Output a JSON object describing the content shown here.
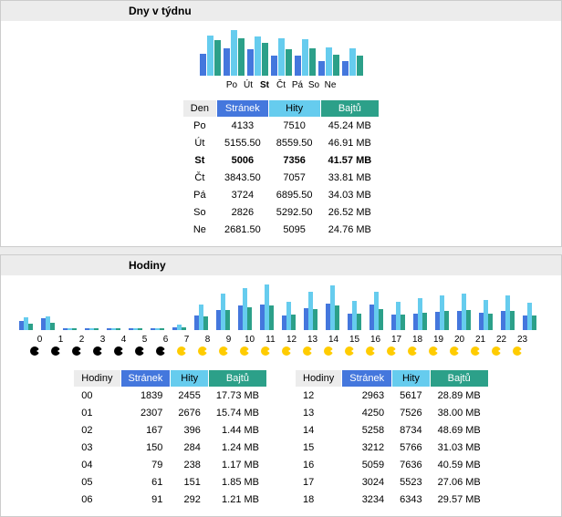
{
  "colors": {
    "bar_blue": "#4477dd",
    "bar_cyan": "#66ccee",
    "bar_teal": "#2ca089",
    "header_gray": "#ececec"
  },
  "days_section": {
    "title": "Dny v týdnu",
    "chart": {
      "type": "bar",
      "max": 8600,
      "bar_colors": [
        "#4477dd",
        "#66ccee",
        "#2ca089"
      ],
      "series": [
        {
          "label": "Po",
          "pages": 4133,
          "hits": 7510,
          "bytes": 45.24
        },
        {
          "label": "Út",
          "pages": 5155.5,
          "hits": 8559.5,
          "bytes": 46.91
        },
        {
          "label": "St",
          "pages": 5006,
          "hits": 7356,
          "bytes": 41.57,
          "bold": true
        },
        {
          "label": "Čt",
          "pages": 3843.5,
          "hits": 7057,
          "bytes": 33.81
        },
        {
          "label": "Pá",
          "pages": 3724,
          "hits": 6895.5,
          "bytes": 34.03
        },
        {
          "label": "So",
          "pages": 2826,
          "hits": 5292.5,
          "bytes": 26.52
        },
        {
          "label": "Ne",
          "pages": 2681.5,
          "hits": 5095,
          "bytes": 24.76
        }
      ]
    },
    "headers": {
      "den": "Den",
      "stranek": "Stránek",
      "hity": "Hity",
      "bajtu": "Bajtů"
    },
    "rows": [
      {
        "den": "Po",
        "stranek": "4133",
        "hity": "7510",
        "bajtu": "45.24 MB"
      },
      {
        "den": "Út",
        "stranek": "5155.50",
        "hity": "8559.50",
        "bajtu": "46.91 MB"
      },
      {
        "den": "St",
        "stranek": "5006",
        "hity": "7356",
        "bajtu": "41.57 MB",
        "bold": true
      },
      {
        "den": "Čt",
        "stranek": "3843.50",
        "hity": "7057",
        "bajtu": "33.81 MB"
      },
      {
        "den": "Pá",
        "stranek": "3724",
        "hity": "6895.50",
        "bajtu": "34.03 MB"
      },
      {
        "den": "So",
        "stranek": "2826",
        "hity": "5292.50",
        "bajtu": "26.52 MB"
      },
      {
        "den": "Ne",
        "stranek": "2681.50",
        "hity": "5095",
        "bajtu": "24.76 MB"
      }
    ]
  },
  "hours_section": {
    "title": "Hodiny",
    "chart": {
      "type": "bar",
      "max": 9000,
      "bar_colors": [
        "#4477dd",
        "#66ccee",
        "#2ca089"
      ],
      "series": [
        {
          "h": "0",
          "p": 1839,
          "hi": 2455
        },
        {
          "h": "1",
          "p": 2307,
          "hi": 2676
        },
        {
          "h": "2",
          "p": 167,
          "hi": 396
        },
        {
          "h": "3",
          "p": 150,
          "hi": 284
        },
        {
          "h": "4",
          "p": 79,
          "hi": 238
        },
        {
          "h": "5",
          "p": 61,
          "hi": 151
        },
        {
          "h": "6",
          "p": 91,
          "hi": 292
        },
        {
          "h": "7",
          "p": 614,
          "hi": 1010
        },
        {
          "h": "8",
          "p": 2800,
          "hi": 5000
        },
        {
          "h": "9",
          "p": 4000,
          "hi": 7200
        },
        {
          "h": "10",
          "p": 4800,
          "hi": 8200
        },
        {
          "h": "11",
          "p": 5100,
          "hi": 9000
        },
        {
          "h": "12",
          "p": 2963,
          "hi": 5617
        },
        {
          "h": "13",
          "p": 4250,
          "hi": 7526
        },
        {
          "h": "14",
          "p": 5258,
          "hi": 8734
        },
        {
          "h": "15",
          "p": 3212,
          "hi": 5766
        },
        {
          "h": "16",
          "p": 5059,
          "hi": 7636
        },
        {
          "h": "17",
          "p": 3024,
          "hi": 5523
        },
        {
          "h": "18",
          "p": 3234,
          "hi": 6343
        },
        {
          "h": "19",
          "p": 3600,
          "hi": 6800
        },
        {
          "h": "20",
          "p": 3800,
          "hi": 7200
        },
        {
          "h": "21",
          "p": 3400,
          "hi": 5900
        },
        {
          "h": "22",
          "p": 3700,
          "hi": 6800
        },
        {
          "h": "23",
          "p": 2900,
          "hi": 5400
        }
      ]
    },
    "headers": {
      "hodiny": "Hodiny",
      "stranek": "Stránek",
      "hity": "Hity",
      "bajtu": "Bajtů"
    },
    "left_rows": [
      {
        "h": "00",
        "p": "1839",
        "hi": "2455",
        "b": "17.73 MB"
      },
      {
        "h": "01",
        "p": "2307",
        "hi": "2676",
        "b": "15.74 MB"
      },
      {
        "h": "02",
        "p": "167",
        "hi": "396",
        "b": "1.44 MB"
      },
      {
        "h": "03",
        "p": "150",
        "hi": "284",
        "b": "1.24 MB"
      },
      {
        "h": "04",
        "p": "79",
        "hi": "238",
        "b": "1.17 MB"
      },
      {
        "h": "05",
        "p": "61",
        "hi": "151",
        "b": "1.85 MB"
      },
      {
        "h": "06",
        "p": "91",
        "hi": "292",
        "b": "1.21 MB"
      }
    ],
    "right_rows": [
      {
        "h": "12",
        "p": "2963",
        "hi": "5617",
        "b": "28.89 MB"
      },
      {
        "h": "13",
        "p": "4250",
        "hi": "7526",
        "b": "38.00 MB"
      },
      {
        "h": "14",
        "p": "5258",
        "hi": "8734",
        "b": "48.69 MB"
      },
      {
        "h": "15",
        "p": "3212",
        "hi": "5766",
        "b": "31.03 MB"
      },
      {
        "h": "16",
        "p": "5059",
        "hi": "7636",
        "b": "40.59 MB"
      },
      {
        "h": "17",
        "p": "3024",
        "hi": "5523",
        "b": "27.06 MB"
      },
      {
        "h": "18",
        "p": "3234",
        "hi": "6343",
        "b": "29.57 MB"
      }
    ]
  }
}
